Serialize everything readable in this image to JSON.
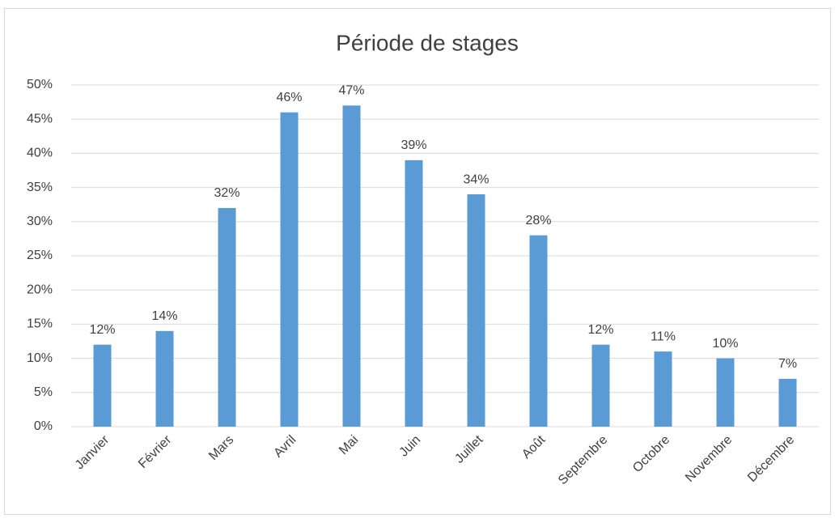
{
  "chart_data": {
    "type": "bar",
    "title": "Période de stages",
    "categories": [
      "Janvier",
      "Février",
      "Mars",
      "Avril",
      "Mai",
      "Juin",
      "Juillet",
      "Août",
      "Septembre",
      "Octobre",
      "Novembre",
      "Décembre"
    ],
    "values": [
      12,
      14,
      32,
      46,
      47,
      39,
      34,
      28,
      12,
      11,
      10,
      7
    ],
    "value_labels": [
      "12%",
      "14%",
      "32%",
      "46%",
      "47%",
      "39%",
      "34%",
      "28%",
      "12%",
      "11%",
      "10%",
      "7%"
    ],
    "color": "#5b9bd5",
    "ylim": [
      0,
      50
    ],
    "yticks": [
      {
        "value": 0,
        "label": "0%"
      },
      {
        "value": 5,
        "label": "5%"
      },
      {
        "value": 10,
        "label": "10%"
      },
      {
        "value": 15,
        "label": "15%"
      },
      {
        "value": 20,
        "label": "20%"
      },
      {
        "value": 25,
        "label": "25%"
      },
      {
        "value": 30,
        "label": "30%"
      },
      {
        "value": 35,
        "label": "35%"
      },
      {
        "value": 40,
        "label": "40%"
      },
      {
        "value": 45,
        "label": "45%"
      },
      {
        "value": 50,
        "label": "50%"
      }
    ],
    "grid": true
  }
}
